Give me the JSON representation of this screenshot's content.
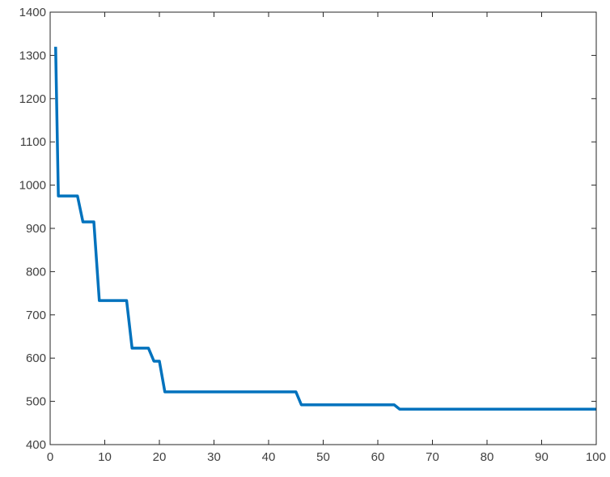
{
  "chart_data": {
    "type": "line",
    "title": "",
    "xlabel": "",
    "ylabel": "",
    "xlim": [
      0,
      100
    ],
    "ylim": [
      400,
      1400
    ],
    "x_ticks": [
      0,
      10,
      20,
      30,
      40,
      50,
      60,
      70,
      80,
      90,
      100
    ],
    "y_ticks": [
      400,
      500,
      600,
      700,
      800,
      900,
      1000,
      1100,
      1200,
      1300,
      1400
    ],
    "x_tick_labels": [
      "0",
      "10",
      "20",
      "30",
      "40",
      "50",
      "60",
      "70",
      "80",
      "90",
      "100"
    ],
    "y_tick_labels": [
      "400",
      "500",
      "600",
      "700",
      "800",
      "900",
      "1000",
      "1100",
      "1200",
      "1300",
      "1400"
    ],
    "grid": false,
    "series": [
      {
        "color": "#0072BD",
        "x": [
          1,
          1.5,
          2,
          5,
          6,
          8,
          9,
          14,
          15,
          18,
          19,
          20,
          21,
          45,
          46,
          63,
          64,
          100
        ],
        "y": [
          1320,
          975,
          975,
          975,
          915,
          915,
          733,
          733,
          623,
          623,
          593,
          593,
          522,
          522,
          492,
          492,
          482,
          482
        ]
      }
    ]
  }
}
